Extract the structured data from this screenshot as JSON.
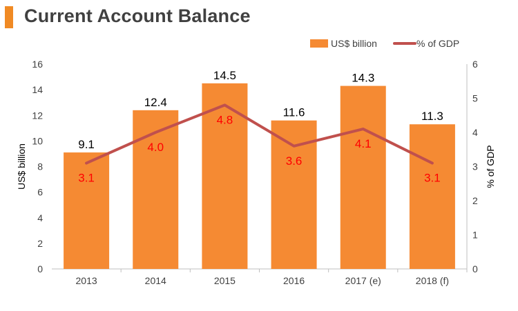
{
  "header": {
    "title": "Current Account Balance"
  },
  "colors": {
    "bar": "#f58a33",
    "line": "#c0504d",
    "line_label": "#ff0000",
    "title_accent": "#f08a24"
  },
  "chart_data": {
    "type": "bar",
    "categories": [
      "2013",
      "2014",
      "2015",
      "2016",
      "2017 (e)",
      "2018 (f)"
    ],
    "series": [
      {
        "name": "US$ billion",
        "type": "bar",
        "axis": "left",
        "values": [
          9.1,
          12.4,
          14.5,
          11.6,
          14.3,
          11.3
        ],
        "labels": [
          "9.1",
          "12.4",
          "14.5",
          "11.6",
          "14.3",
          "11.3"
        ]
      },
      {
        "name": "% of GDP",
        "type": "line",
        "axis": "right",
        "values": [
          3.1,
          4.0,
          4.8,
          3.6,
          4.1,
          3.1
        ],
        "labels": [
          "3.1",
          "4.0",
          "4.8",
          "3.6",
          "4.1",
          "3.1"
        ]
      }
    ],
    "ylabel": "US$ billion",
    "y2label": "% of GDP",
    "ylim": [
      0,
      16
    ],
    "y2lim": [
      0,
      6
    ],
    "yticks": [
      "0",
      "2",
      "4",
      "6",
      "8",
      "10",
      "12",
      "14",
      "16"
    ],
    "y2ticks": [
      "0",
      "1",
      "2",
      "3",
      "4",
      "5",
      "6"
    ],
    "legend_position": "top-right",
    "grid": false
  }
}
